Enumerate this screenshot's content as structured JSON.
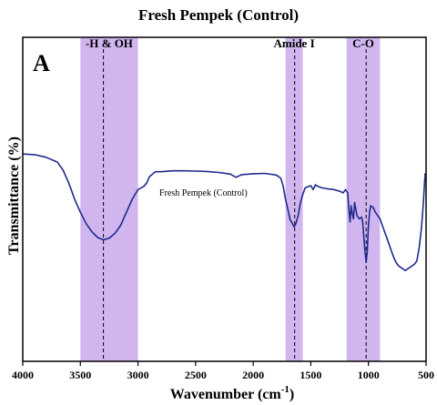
{
  "chart_data": {
    "type": "line",
    "title": "Fresh Pempek (Control)",
    "panel_label": "A",
    "xlabel": "Wavenumber (cm",
    "xlabel_sup": "-1",
    "xlabel_end": ")",
    "ylabel": "Transmittance (%)",
    "xlim": [
      4000,
      500
    ],
    "ylim": [
      0,
      100
    ],
    "x_ticks": [
      4000,
      3500,
      3000,
      2500,
      2000,
      1500,
      1000,
      500
    ],
    "grid": false,
    "highlight_color": "#c9a8ec",
    "line_color": "#1f2a8c",
    "bands": [
      {
        "label": "-H & OH",
        "from": 3500,
        "to": 3000,
        "peak": 3300
      },
      {
        "label": "Amide I",
        "from": 1720,
        "to": 1570,
        "peak": 1640
      },
      {
        "label": "C-O",
        "from": 1190,
        "to": 900,
        "peak": 1020
      }
    ],
    "series": [
      {
        "name": "Fresh Pempek (Control)",
        "points": [
          [
            4000,
            64
          ],
          [
            3900,
            63.8
          ],
          [
            3800,
            63
          ],
          [
            3700,
            61.5
          ],
          [
            3650,
            59
          ],
          [
            3600,
            55
          ],
          [
            3550,
            50
          ],
          [
            3500,
            46
          ],
          [
            3450,
            42.5
          ],
          [
            3400,
            40
          ],
          [
            3350,
            38.2
          ],
          [
            3300,
            37.5
          ],
          [
            3250,
            38
          ],
          [
            3200,
            39.5
          ],
          [
            3150,
            42
          ],
          [
            3100,
            46
          ],
          [
            3050,
            50
          ],
          [
            3000,
            53
          ],
          [
            2950,
            54
          ],
          [
            2925,
            55
          ],
          [
            2900,
            57
          ],
          [
            2850,
            58.5
          ],
          [
            2800,
            58.5
          ],
          [
            2700,
            58.8
          ],
          [
            2600,
            58.8
          ],
          [
            2500,
            58.7
          ],
          [
            2400,
            58.6
          ],
          [
            2300,
            58.3
          ],
          [
            2200,
            57.8
          ],
          [
            2150,
            56.8
          ],
          [
            2100,
            57.6
          ],
          [
            2000,
            57.9
          ],
          [
            1900,
            58
          ],
          [
            1800,
            57.5
          ],
          [
            1760,
            56.5
          ],
          [
            1740,
            54
          ],
          [
            1720,
            50
          ],
          [
            1700,
            47
          ],
          [
            1680,
            43.8
          ],
          [
            1660,
            42.5
          ],
          [
            1645,
            41.5
          ],
          [
            1630,
            42.5
          ],
          [
            1610,
            45
          ],
          [
            1590,
            49
          ],
          [
            1570,
            51.5
          ],
          [
            1550,
            53.5
          ],
          [
            1520,
            54
          ],
          [
            1500,
            54.2
          ],
          [
            1480,
            53
          ],
          [
            1460,
            54.5
          ],
          [
            1440,
            54
          ],
          [
            1400,
            53.5
          ],
          [
            1350,
            53.2
          ],
          [
            1300,
            53
          ],
          [
            1250,
            52.5
          ],
          [
            1220,
            52
          ],
          [
            1200,
            53
          ],
          [
            1180,
            52
          ],
          [
            1170,
            47
          ],
          [
            1160,
            43
          ],
          [
            1150,
            48
          ],
          [
            1140,
            45.5
          ],
          [
            1130,
            44
          ],
          [
            1120,
            49
          ],
          [
            1110,
            47
          ],
          [
            1100,
            45
          ],
          [
            1080,
            44
          ],
          [
            1060,
            44.5
          ],
          [
            1050,
            43
          ],
          [
            1040,
            38
          ],
          [
            1030,
            34
          ],
          [
            1020,
            30.5
          ],
          [
            1010,
            34
          ],
          [
            1000,
            42
          ],
          [
            990,
            46
          ],
          [
            980,
            48
          ],
          [
            960,
            47.5
          ],
          [
            940,
            46
          ],
          [
            920,
            45
          ],
          [
            900,
            44
          ],
          [
            880,
            42
          ],
          [
            860,
            40
          ],
          [
            840,
            38
          ],
          [
            820,
            36
          ],
          [
            800,
            34
          ],
          [
            780,
            32
          ],
          [
            760,
            30.5
          ],
          [
            740,
            29.5
          ],
          [
            720,
            29
          ],
          [
            700,
            28.5
          ],
          [
            680,
            28
          ],
          [
            660,
            28.5
          ],
          [
            640,
            29
          ],
          [
            620,
            29.5
          ],
          [
            600,
            30
          ],
          [
            580,
            31
          ],
          [
            560,
            35
          ],
          [
            540,
            41
          ],
          [
            525,
            48
          ],
          [
            512,
            56
          ],
          [
            505,
            58
          ]
        ]
      }
    ],
    "series_label": "Fresh Pempek (Control)"
  }
}
